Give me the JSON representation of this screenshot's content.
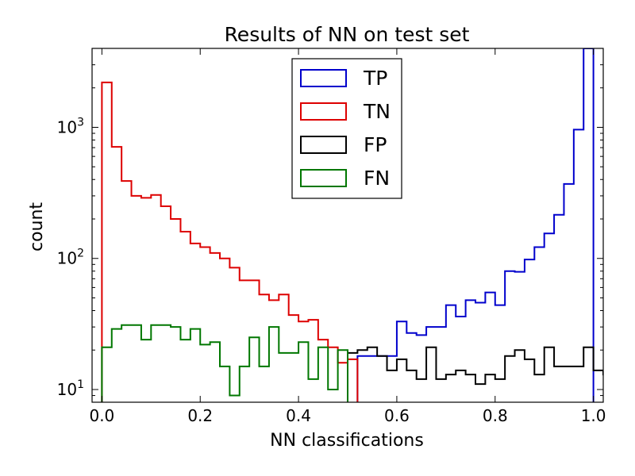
{
  "chart_data": {
    "type": "histogram",
    "title": "Results of NN on test set",
    "xlabel": "NN classifications",
    "ylabel": "count",
    "xlim": [
      -0.02,
      1.02
    ],
    "ylim": [
      8,
      4000
    ],
    "yscale": "log",
    "grid": false,
    "legend_position": "top-center",
    "bin_width": 0.02,
    "x_ticks": [
      0.0,
      0.2,
      0.4,
      0.6,
      0.8,
      1.0
    ],
    "x_tick_labels": [
      "0.0",
      "0.2",
      "0.4",
      "0.6",
      "0.8",
      "1.0"
    ],
    "y_ticks": [
      10,
      100,
      1000
    ],
    "y_tick_labels": [
      {
        "base": "10",
        "exp": "1"
      },
      {
        "base": "10",
        "exp": "2"
      },
      {
        "base": "10",
        "exp": "3"
      }
    ],
    "series": [
      {
        "name": "TP",
        "color": "#0000cc",
        "bin_start": 0.52,
        "values": [
          18,
          18,
          18,
          18,
          33,
          27,
          26,
          30,
          30,
          44,
          36,
          48,
          46,
          55,
          44,
          80,
          79,
          98,
          122,
          155,
          215,
          370,
          960,
          4000
        ]
      },
      {
        "name": "TN",
        "color": "#dd0000",
        "bin_start": 0.0,
        "values": [
          2200,
          710,
          390,
          300,
          290,
          305,
          250,
          200,
          160,
          130,
          122,
          110,
          100,
          85,
          68,
          68,
          53,
          48,
          53,
          37,
          33,
          34,
          24,
          21,
          16,
          17
        ]
      },
      {
        "name": "FP",
        "color": "#000000",
        "bin_start": 0.5,
        "values": [
          19,
          20,
          21,
          18,
          14,
          17,
          14,
          12,
          21,
          12,
          13,
          14,
          13,
          11,
          13,
          12,
          18,
          20,
          17,
          13,
          21,
          15,
          15,
          15,
          21,
          14,
          13,
          14,
          18,
          16,
          17
        ]
      },
      {
        "name": "FN",
        "color": "#007700",
        "bin_start": 0.0,
        "values": [
          21,
          29,
          31,
          31,
          24,
          31,
          31,
          30,
          24,
          29,
          22,
          23,
          15,
          9,
          15,
          25,
          15,
          30,
          19,
          19,
          23,
          12,
          21,
          10,
          20
        ]
      }
    ]
  }
}
